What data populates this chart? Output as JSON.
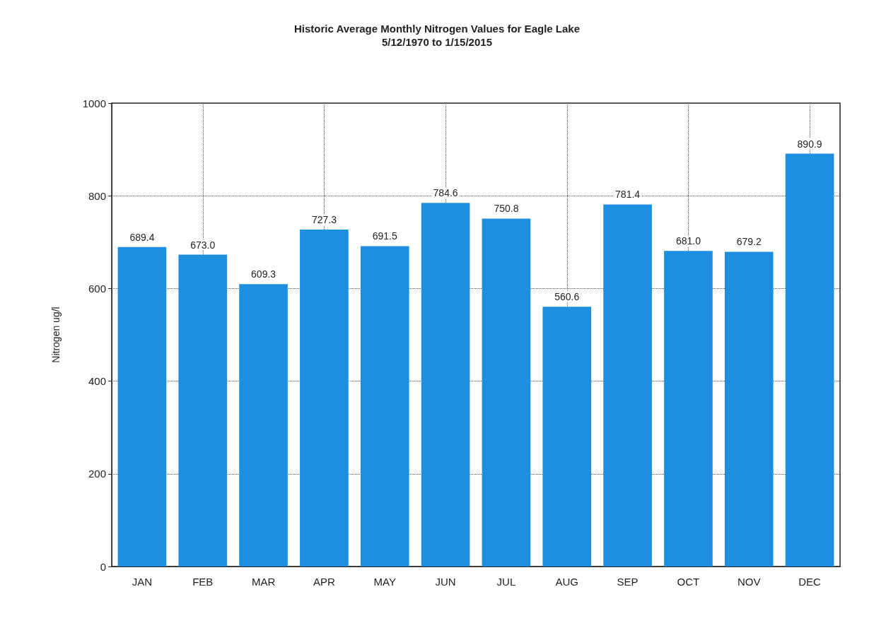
{
  "chart_data": {
    "type": "bar",
    "title": "Historic Average Monthly Nitrogen Values for Eagle Lake",
    "subtitle": "5/12/1970 to 1/15/2015",
    "ylabel": "Nitrogen ug/l",
    "categories": [
      "JAN",
      "FEB",
      "MAR",
      "APR",
      "MAY",
      "JUN",
      "JUL",
      "AUG",
      "SEP",
      "OCT",
      "NOV",
      "DEC"
    ],
    "values": [
      689.4,
      673.0,
      609.3,
      727.3,
      691.5,
      784.6,
      750.8,
      560.6,
      781.4,
      681.0,
      679.2,
      890.9
    ],
    "value_labels": [
      "689.4",
      "673.0",
      "609.3",
      "727.3",
      "691.5",
      "784.6",
      "750.8",
      "560.6",
      "781.4",
      "681.0",
      "679.2",
      "890.9"
    ],
    "color": "#1e8fe0",
    "ylim": [
      0,
      1000
    ],
    "yticks": [
      0,
      200,
      400,
      600,
      800,
      1000
    ],
    "grid": true
  }
}
